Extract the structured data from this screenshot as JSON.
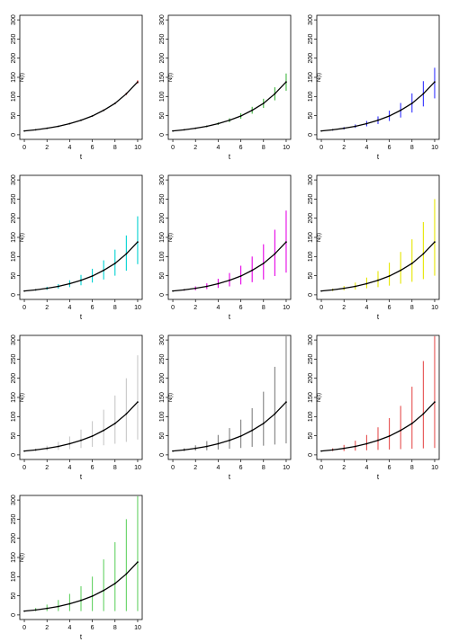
{
  "chart_data": [
    {
      "type": "line",
      "color": "#ff0000",
      "xlabel": "t",
      "ylabel": "N(t)",
      "xlim": [
        0,
        10
      ],
      "ylim": [
        0,
        300
      ],
      "x_ticks": [
        "0",
        "2",
        "4",
        "6",
        "8",
        "10"
      ],
      "y_ticks": [
        "0",
        "50",
        "100",
        "150",
        "200",
        "250",
        "300"
      ],
      "x": [
        0,
        1,
        2,
        3,
        4,
        5,
        6,
        7,
        8,
        9,
        10
      ],
      "series": [
        {
          "values": [
            10,
            13,
            17,
            22,
            29,
            38,
            49,
            64,
            82,
            107,
            138
          ]
        }
      ],
      "error_bars": {
        "lower": [
          10,
          13,
          17,
          22,
          29,
          37,
          48,
          62,
          80,
          104,
          134
        ],
        "upper": [
          10,
          13,
          17,
          22,
          29,
          39,
          50,
          66,
          84,
          110,
          142
        ]
      }
    },
    {
      "type": "line",
      "color": "#3cb43c",
      "xlabel": "t",
      "ylabel": "N(t)",
      "xlim": [
        0,
        10
      ],
      "ylim": [
        0,
        300
      ],
      "x_ticks": [
        "0",
        "2",
        "4",
        "6",
        "8",
        "10"
      ],
      "y_ticks": [
        "0",
        "50",
        "100",
        "150",
        "200",
        "250",
        "300"
      ],
      "x": [
        0,
        1,
        2,
        3,
        4,
        5,
        6,
        7,
        8,
        9,
        10
      ],
      "series": [
        {
          "values": [
            10,
            13,
            17,
            22,
            29,
            38,
            49,
            64,
            82,
            107,
            138
          ]
        }
      ],
      "error_bars": {
        "lower": [
          10,
          12,
          16,
          20,
          26,
          33,
          42,
          55,
          70,
          90,
          115
        ],
        "upper": [
          10,
          14,
          18,
          24,
          32,
          43,
          56,
          73,
          94,
          124,
          160
        ]
      }
    },
    {
      "type": "line",
      "color": "#3232ff",
      "xlabel": "t",
      "ylabel": "N(t)",
      "xlim": [
        0,
        10
      ],
      "ylim": [
        0,
        300
      ],
      "x_ticks": [
        "0",
        "2",
        "4",
        "6",
        "8",
        "10"
      ],
      "y_ticks": [
        "0",
        "50",
        "100",
        "150",
        "200",
        "250",
        "300"
      ],
      "x": [
        0,
        1,
        2,
        3,
        4,
        5,
        6,
        7,
        8,
        9,
        10
      ],
      "series": [
        {
          "values": [
            10,
            13,
            17,
            22,
            29,
            38,
            49,
            64,
            82,
            107,
            138
          ]
        }
      ],
      "error_bars": {
        "lower": [
          10,
          11,
          14,
          18,
          22,
          28,
          36,
          45,
          58,
          74,
          95
        ],
        "upper": [
          10,
          15,
          20,
          27,
          36,
          48,
          63,
          83,
          108,
          140,
          175
        ]
      }
    },
    {
      "type": "line",
      "color": "#00d2d2",
      "xlabel": "t",
      "ylabel": "N(t)",
      "xlim": [
        0,
        10
      ],
      "ylim": [
        0,
        300
      ],
      "x_ticks": [
        "0",
        "2",
        "4",
        "6",
        "8",
        "10"
      ],
      "y_ticks": [
        "0",
        "50",
        "100",
        "150",
        "200",
        "250",
        "300"
      ],
      "x": [
        0,
        1,
        2,
        3,
        4,
        5,
        6,
        7,
        8,
        9,
        10
      ],
      "series": [
        {
          "values": [
            10,
            13,
            17,
            22,
            29,
            38,
            49,
            64,
            82,
            107,
            138
          ]
        }
      ],
      "error_bars": {
        "lower": [
          10,
          11,
          13,
          16,
          20,
          25,
          32,
          40,
          50,
          63,
          80
        ],
        "upper": [
          10,
          15,
          21,
          28,
          38,
          52,
          68,
          90,
          118,
          155,
          205
        ]
      }
    },
    {
      "type": "line",
      "color": "#e600e6",
      "xlabel": "t",
      "ylabel": "N(t)",
      "xlim": [
        0,
        10
      ],
      "ylim": [
        0,
        300
      ],
      "x_ticks": [
        "0",
        "2",
        "4",
        "6",
        "8",
        "10"
      ],
      "y_ticks": [
        "0",
        "50",
        "100",
        "150",
        "200",
        "250",
        "300"
      ],
      "x": [
        0,
        1,
        2,
        3,
        4,
        5,
        6,
        7,
        8,
        9,
        10
      ],
      "series": [
        {
          "values": [
            10,
            13,
            17,
            22,
            29,
            38,
            49,
            64,
            82,
            107,
            138
          ]
        }
      ],
      "error_bars": {
        "lower": [
          10,
          11,
          12,
          15,
          18,
          22,
          27,
          33,
          40,
          49,
          58
        ],
        "upper": [
          10,
          15,
          22,
          30,
          42,
          57,
          76,
          100,
          132,
          170,
          220
        ]
      }
    },
    {
      "type": "line",
      "color": "#e6e600",
      "xlabel": "t",
      "ylabel": "N(t)",
      "xlim": [
        0,
        10
      ],
      "ylim": [
        0,
        300
      ],
      "x_ticks": [
        "0",
        "2",
        "4",
        "6",
        "8",
        "10"
      ],
      "y_ticks": [
        "0",
        "50",
        "100",
        "150",
        "200",
        "250",
        "300"
      ],
      "x": [
        0,
        1,
        2,
        3,
        4,
        5,
        6,
        7,
        8,
        9,
        10
      ],
      "series": [
        {
          "values": [
            10,
            13,
            17,
            22,
            29,
            38,
            49,
            64,
            82,
            107,
            138
          ]
        }
      ],
      "error_bars": {
        "lower": [
          10,
          10,
          12,
          14,
          17,
          20,
          24,
          29,
          34,
          41,
          50
        ],
        "upper": [
          10,
          16,
          23,
          32,
          45,
          62,
          84,
          112,
          145,
          190,
          250
        ]
      }
    },
    {
      "type": "line",
      "color": "#c8c8c8",
      "xlabel": "t",
      "ylabel": "N(t)",
      "xlim": [
        0,
        10
      ],
      "ylim": [
        0,
        300
      ],
      "x_ticks": [
        "0",
        "2",
        "4",
        "6",
        "8",
        "10"
      ],
      "y_ticks": [
        "0",
        "50",
        "100",
        "150",
        "200",
        "250",
        "300"
      ],
      "x": [
        0,
        1,
        2,
        3,
        4,
        5,
        6,
        7,
        8,
        9,
        10
      ],
      "series": [
        {
          "values": [
            10,
            13,
            17,
            22,
            29,
            38,
            49,
            64,
            82,
            107,
            138
          ]
        }
      ],
      "error_bars": {
        "lower": [
          10,
          10,
          11,
          13,
          15,
          18,
          21,
          25,
          29,
          34,
          40
        ],
        "upper": [
          10,
          16,
          24,
          34,
          48,
          66,
          88,
          118,
          155,
          200,
          260
        ]
      }
    },
    {
      "type": "line",
      "color": "#808080",
      "xlabel": "t",
      "ylabel": "N(t)",
      "xlim": [
        0,
        10
      ],
      "ylim": [
        0,
        300
      ],
      "x_ticks": [
        "0",
        "2",
        "4",
        "6",
        "8",
        "10"
      ],
      "y_ticks": [
        "0",
        "50",
        "100",
        "150",
        "200",
        "250",
        "300"
      ],
      "x": [
        0,
        1,
        2,
        3,
        4,
        5,
        6,
        7,
        8,
        9,
        10
      ],
      "series": [
        {
          "values": [
            10,
            13,
            17,
            22,
            29,
            38,
            49,
            64,
            82,
            107,
            138
          ]
        }
      ],
      "error_bars": {
        "lower": [
          10,
          10,
          11,
          12,
          14,
          16,
          18,
          21,
          24,
          27,
          30
        ],
        "upper": [
          10,
          17,
          25,
          36,
          52,
          70,
          92,
          122,
          165,
          230,
          310
        ]
      }
    },
    {
      "type": "line",
      "color": "#e65050",
      "xlabel": "t",
      "ylabel": "N(t)",
      "xlim": [
        0,
        10
      ],
      "ylim": [
        0,
        300
      ],
      "x_ticks": [
        "0",
        "2",
        "4",
        "6",
        "8",
        "10"
      ],
      "y_ticks": [
        "0",
        "50",
        "100",
        "150",
        "200",
        "250",
        "300"
      ],
      "x": [
        0,
        1,
        2,
        3,
        4,
        5,
        6,
        7,
        8,
        9,
        10
      ],
      "series": [
        {
          "values": [
            10,
            13,
            17,
            22,
            29,
            38,
            49,
            64,
            82,
            107,
            138
          ]
        }
      ],
      "error_bars": {
        "lower": [
          10,
          10,
          10,
          11,
          12,
          13,
          14,
          15,
          16,
          17,
          18
        ],
        "upper": [
          10,
          17,
          26,
          37,
          52,
          72,
          96,
          128,
          178,
          245,
          310
        ]
      }
    },
    {
      "type": "line",
      "color": "#64d264",
      "xlabel": "t",
      "ylabel": "N(t)",
      "xlim": [
        0,
        10
      ],
      "ylim": [
        0,
        300
      ],
      "x_ticks": [
        "0",
        "2",
        "4",
        "6",
        "8",
        "10"
      ],
      "y_ticks": [
        "0",
        "50",
        "100",
        "150",
        "200",
        "250",
        "300"
      ],
      "x": [
        0,
        1,
        2,
        3,
        4,
        5,
        6,
        7,
        8,
        9,
        10
      ],
      "series": [
        {
          "values": [
            10,
            13,
            17,
            22,
            29,
            38,
            49,
            64,
            82,
            107,
            138
          ]
        }
      ],
      "error_bars": {
        "lower": [
          10,
          10,
          10,
          10,
          10,
          10,
          10,
          10,
          10,
          10,
          10
        ],
        "upper": [
          10,
          18,
          27,
          39,
          55,
          75,
          100,
          145,
          190,
          250,
          310
        ]
      }
    }
  ]
}
